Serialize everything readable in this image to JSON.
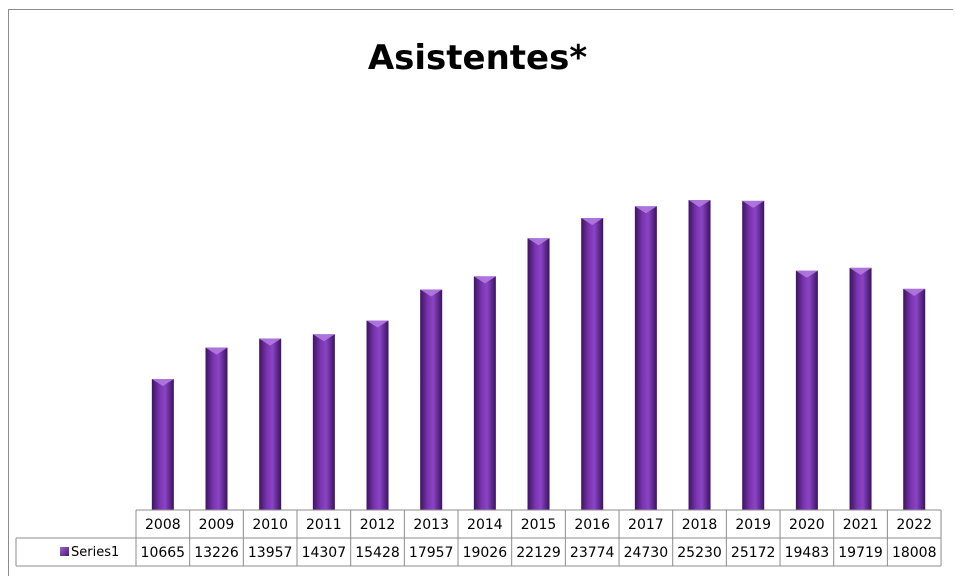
{
  "chart_data": {
    "type": "bar",
    "title": "Asistentes*",
    "categories": [
      "2008",
      "2009",
      "2010",
      "2011",
      "2012",
      "2013",
      "2014",
      "2015",
      "2016",
      "2017",
      "2018",
      "2019",
      "2020",
      "2021",
      "2022"
    ],
    "series": [
      {
        "name": "Series1",
        "values": [
          10665,
          13226,
          13957,
          14307,
          15428,
          17957,
          19026,
          22129,
          23774,
          24730,
          25230,
          25172,
          19483,
          19719,
          18008
        ],
        "color": "#7030a0"
      }
    ],
    "ylim": [
      0,
      30000
    ],
    "data_table": true,
    "grid": false,
    "legend": "data table"
  }
}
